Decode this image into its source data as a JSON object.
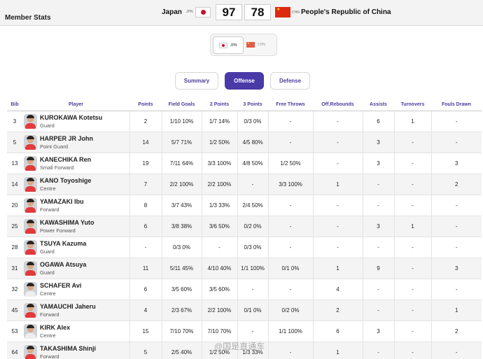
{
  "header": {
    "section_title": "Member Stats",
    "home": {
      "name": "Japan",
      "code": "JPN",
      "score": "97",
      "flag": "japan-flag-icon"
    },
    "away": {
      "name": "People's Republic of China",
      "code": "CHN",
      "score": "78",
      "flag": "china-flag-icon"
    }
  },
  "team_toggle": {
    "options": [
      {
        "code": "JPN",
        "flag": "japan-flag-icon",
        "selected": true
      },
      {
        "code": "CHN",
        "flag": "china-flag-icon",
        "selected": false
      }
    ]
  },
  "tabs": [
    {
      "label": "Summary",
      "active": false
    },
    {
      "label": "Offense",
      "active": true
    },
    {
      "label": "Defense",
      "active": false
    }
  ],
  "table": {
    "columns": [
      "Bib",
      "Player",
      "Points",
      "Field Goals",
      "2 Points",
      "3 Points",
      "Free Throws",
      "Off.Rebounds",
      "Assists",
      "Turnovers",
      "Fouls Drawn"
    ],
    "rows": [
      {
        "bib": "3",
        "name": "KUROKAWA Kotetsu",
        "position": "Guard",
        "points": "2",
        "fg": "1/10 10%",
        "p2": "1/7 14%",
        "p3": "0/3 0%",
        "ft": "-",
        "oreb": "-",
        "ast": "6",
        "to": "1",
        "fd": "-"
      },
      {
        "bib": "5",
        "name": "HARPER JR John",
        "position": "Point Guard",
        "points": "14",
        "fg": "5/7 71%",
        "p2": "1/2 50%",
        "p3": "4/5 80%",
        "ft": "-",
        "oreb": "-",
        "ast": "3",
        "to": "-",
        "fd": "-"
      },
      {
        "bib": "13",
        "name": "KANECHIKA Ren",
        "position": "Small Forward",
        "points": "19",
        "fg": "7/11 64%",
        "p2": "3/3 100%",
        "p3": "4/8 50%",
        "ft": "1/2 50%",
        "oreb": "-",
        "ast": "3",
        "to": "-",
        "fd": "3"
      },
      {
        "bib": "14",
        "name": "KANO Toyoshige",
        "position": "Centre",
        "points": "7",
        "fg": "2/2 100%",
        "p2": "2/2 100%",
        "p3": "-",
        "ft": "3/3 100%",
        "oreb": "1",
        "ast": "-",
        "to": "-",
        "fd": "2"
      },
      {
        "bib": "20",
        "name": "YAMAZAKI Ibu",
        "position": "Forward",
        "points": "8",
        "fg": "3/7 43%",
        "p2": "1/3 33%",
        "p3": "2/4 50%",
        "ft": "-",
        "oreb": "-",
        "ast": "-",
        "to": "-",
        "fd": "-"
      },
      {
        "bib": "25",
        "name": "KAWASHIMA Yuto",
        "position": "Power Forward",
        "points": "6",
        "fg": "3/8 38%",
        "p2": "3/6 50%",
        "p3": "0/2 0%",
        "ft": "-",
        "oreb": "-",
        "ast": "3",
        "to": "1",
        "fd": "-"
      },
      {
        "bib": "28",
        "name": "TSUYA Kazuma",
        "position": "Guard",
        "points": "-",
        "fg": "0/3 0%",
        "p2": "-",
        "p3": "0/3 0%",
        "ft": "-",
        "oreb": "-",
        "ast": "-",
        "to": "-",
        "fd": "-"
      },
      {
        "bib": "31",
        "name": "OGAWA Atsuya",
        "position": "Guard",
        "points": "11",
        "fg": "5/11 45%",
        "p2": "4/10 40%",
        "p3": "1/1 100%",
        "ft": "0/1 0%",
        "oreb": "1",
        "ast": "9",
        "to": "-",
        "fd": "3"
      },
      {
        "bib": "32",
        "name": "SCHAFER Avi",
        "position": "Centre",
        "points": "6",
        "fg": "3/5 60%",
        "p2": "3/5 60%",
        "p3": "-",
        "ft": "-",
        "oreb": "4",
        "ast": "-",
        "to": "-",
        "fd": "-"
      },
      {
        "bib": "45",
        "name": "YAMAUCHI Jaheru",
        "position": "Forward",
        "points": "4",
        "fg": "2/3 67%",
        "p2": "2/2 100%",
        "p3": "0/1 0%",
        "ft": "0/2 0%",
        "oreb": "2",
        "ast": "-",
        "to": "-",
        "fd": "1"
      },
      {
        "bib": "53",
        "name": "KIRK Alex",
        "position": "Centre",
        "points": "15",
        "fg": "7/10 70%",
        "p2": "7/10 70%",
        "p3": "-",
        "ft": "1/1 100%",
        "oreb": "6",
        "ast": "3",
        "to": "-",
        "fd": "2"
      },
      {
        "bib": "64",
        "name": "TAKASHIMA Shinji",
        "position": "Forward",
        "points": "5",
        "fg": "2/5 40%",
        "p2": "1/2 50%",
        "p3": "1/3 33%",
        "ft": "-",
        "oreb": "1",
        "ast": "-",
        "to": "-",
        "fd": "-"
      }
    ]
  },
  "watermark": "@国是直通车",
  "colors": {
    "accent": "#4a3aa8",
    "header_text": "#4a3e9e",
    "row_alt": "#f4f4f4"
  }
}
